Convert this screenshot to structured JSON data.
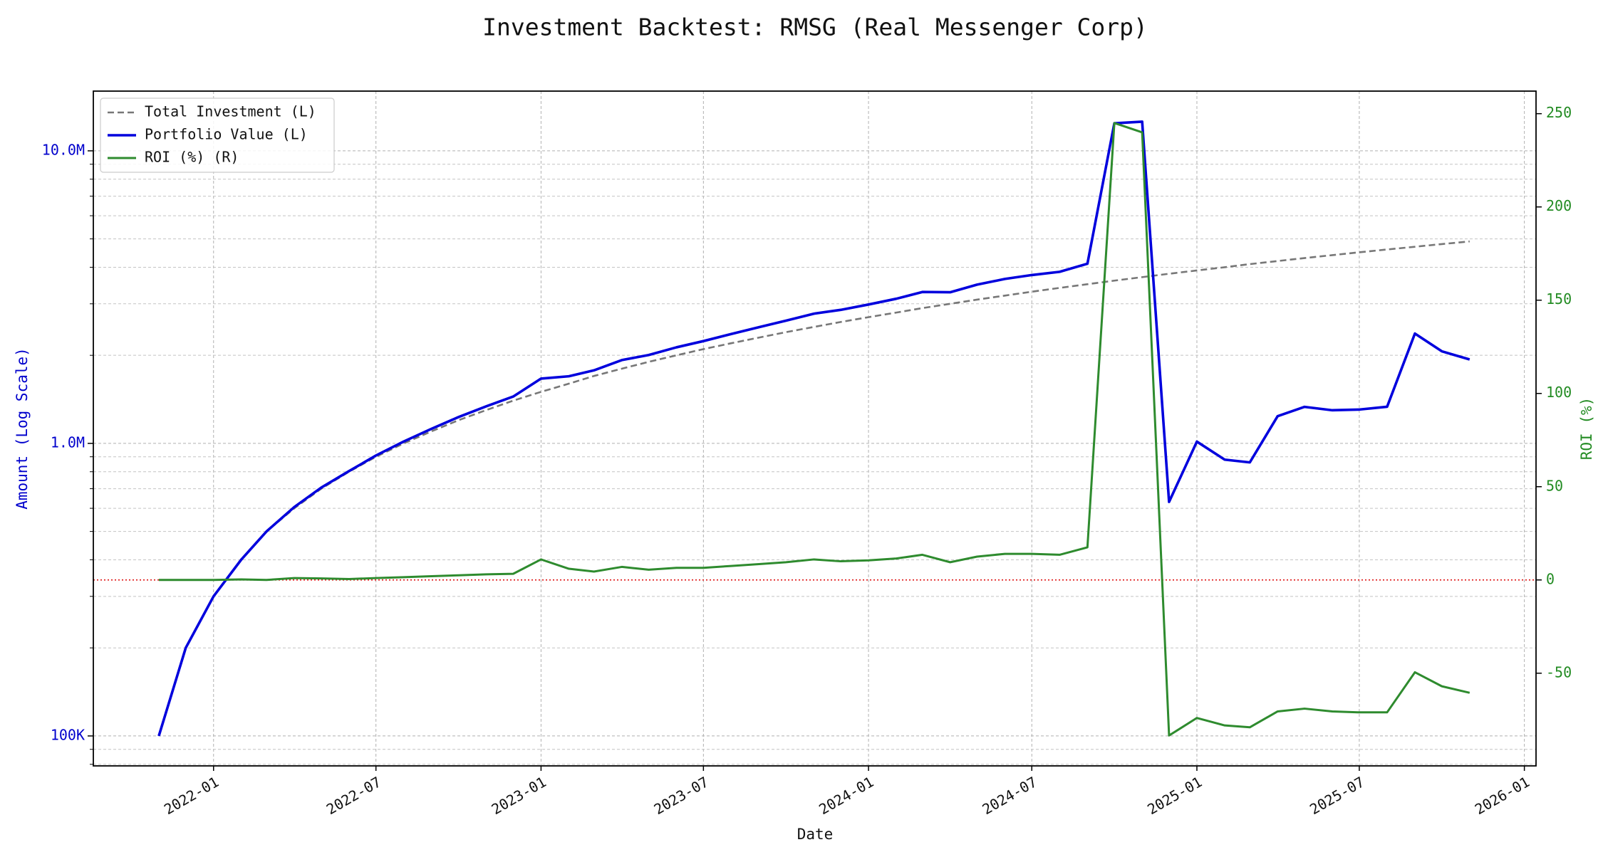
{
  "chart_data": {
    "type": "line",
    "title": "Investment Backtest: RMSG (Real Messenger Corp)",
    "x_label": "Date",
    "y_label": "Amount (Log Scale)",
    "y2_label": "ROI (%)",
    "y_label_color": "#0000cc",
    "y2_label_color": "#228b22",
    "yscale": "log",
    "grid": true,
    "legend": "upper left",
    "x": [
      "2021-11",
      "2021-12",
      "2022-01",
      "2022-02",
      "2022-03",
      "2022-04",
      "2022-05",
      "2022-06",
      "2022-07",
      "2022-08",
      "2022-09",
      "2022-10",
      "2022-11",
      "2022-12",
      "2023-01",
      "2023-02",
      "2023-03",
      "2023-04",
      "2023-05",
      "2023-06",
      "2023-07",
      "2023-08",
      "2023-09",
      "2023-10",
      "2023-11",
      "2023-12",
      "2024-01",
      "2024-02",
      "2024-03",
      "2024-04",
      "2024-05",
      "2024-06",
      "2024-07",
      "2024-08",
      "2024-09",
      "2024-10",
      "2024-11",
      "2024-12",
      "2025-01",
      "2025-02",
      "2025-03",
      "2025-04",
      "2025-05",
      "2025-06",
      "2025-07",
      "2025-08",
      "2025-09",
      "2025-10",
      "2025-11"
    ],
    "xlim": [
      "2021-08-20",
      "2026-01-14"
    ],
    "xticks": [
      "2022-01",
      "2022-07",
      "2023-01",
      "2023-07",
      "2024-01",
      "2024-07",
      "2025-01",
      "2025-07",
      "2026-01"
    ],
    "ylim": [
      79000,
      16000000
    ],
    "yticks": [
      {
        "value": 100000,
        "label": "100K"
      },
      {
        "value": 1000000,
        "label": "1.0M"
      },
      {
        "value": 10000000,
        "label": "10.0M"
      }
    ],
    "yminor_ticks": [
      80000,
      90000,
      200000,
      300000,
      400000,
      500000,
      600000,
      700000,
      800000,
      900000,
      2000000,
      3000000,
      4000000,
      5000000,
      6000000,
      7000000,
      8000000,
      9000000
    ],
    "y2lim": [
      -99.7,
      262.1
    ],
    "y2ticks": [
      -50,
      0,
      50,
      100,
      150,
      200,
      250
    ],
    "hlines": [
      {
        "value": 0,
        "axis": "y2",
        "color": "#e02020"
      }
    ],
    "series": [
      {
        "name": "Total Investment (L)",
        "color": "#777777",
        "linestyle": "dashed",
        "axis": "y",
        "values": [
          100000,
          200000,
          300000,
          400000,
          500000,
          600000,
          700000,
          800000,
          900000,
          1000000,
          1100000,
          1200000,
          1300000,
          1400000,
          1500000,
          1600000,
          1700000,
          1800000,
          1900000,
          2000000,
          2100000,
          2200000,
          2300000,
          2400000,
          2500000,
          2600000,
          2700000,
          2800000,
          2900000,
          3000000,
          3100000,
          3200000,
          3300000,
          3400000,
          3500000,
          3600000,
          3700000,
          3800000,
          3900000,
          4000000,
          4100000,
          4200000,
          4300000,
          4400000,
          4500000,
          4600000,
          4700000,
          4800000,
          4900000
        ]
      },
      {
        "name": "Portfolio Value (L)",
        "color": "#0000dd",
        "linestyle": "solid",
        "axis": "y",
        "values": [
          100000,
          200000,
          300000,
          401000,
          500000,
          606000,
          706000,
          804000,
          909000,
          1015000,
          1122000,
          1230000,
          1339000,
          1446000,
          1665000,
          1696000,
          1777000,
          1926000,
          2005000,
          2130000,
          2237000,
          2365000,
          2496000,
          2628000,
          2775000,
          2860000,
          2983000,
          3122000,
          3292000,
          3285000,
          3488000,
          3648000,
          3762000,
          3859000,
          4113000,
          12420000,
          12580000,
          631000,
          1014000,
          880000,
          861000,
          1239000,
          1333000,
          1298000,
          1305000,
          1334000,
          2374000,
          2064000,
          1936000
        ]
      },
      {
        "name": "ROI (%) (R)",
        "color": "#2e8b2e",
        "linestyle": "solid",
        "axis": "y2",
        "values": [
          0,
          0,
          0,
          0.3,
          0,
          1,
          0.8,
          0.5,
          1,
          1.5,
          2,
          2.5,
          3,
          3.3,
          11,
          6,
          4.5,
          7,
          5.5,
          6.5,
          6.5,
          7.5,
          8.5,
          9.5,
          11,
          10,
          10.5,
          11.5,
          13.5,
          9.5,
          12.5,
          14,
          14,
          13.5,
          17.5,
          245,
          240,
          -83.4,
          -74,
          -78,
          -79,
          -70.5,
          -69,
          -70.5,
          -71,
          -71,
          -49.5,
          -57,
          -60.5
        ]
      }
    ]
  }
}
